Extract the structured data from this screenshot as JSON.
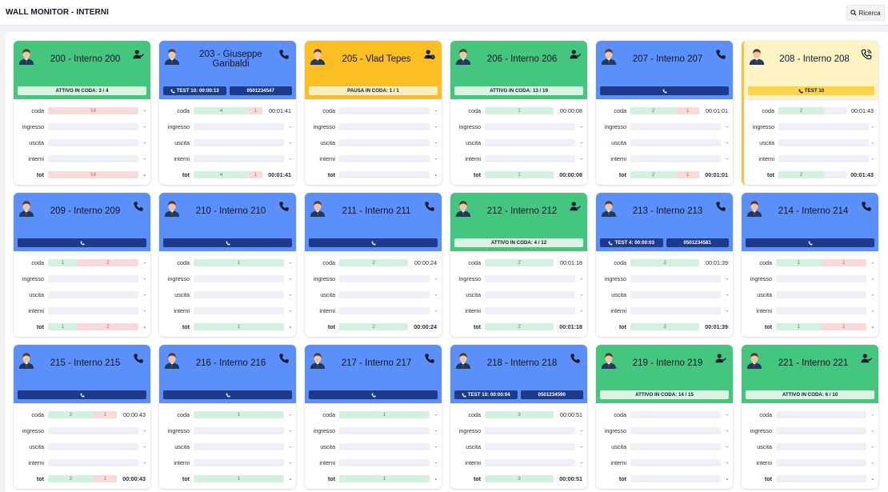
{
  "app": {
    "title": "WALL MONITOR - INTERNI",
    "search_label": "Ricerca",
    "search_icon": "search-icon"
  },
  "colors": {
    "green": "#45c67e",
    "blue": "#5b8ff9",
    "yellow": "#fbbf24",
    "cream": "#fdf3c4",
    "navy": "#1e3a8a"
  },
  "row_labels": {
    "coda": "coda",
    "ingresso": "ingresso",
    "uscita": "uscita",
    "interni": "interni",
    "tot": "tot"
  },
  "extensions": [
    {
      "name": "200 - Interno 200",
      "color": "green",
      "status_icon": "user-check-icon",
      "pills": [
        {
          "style": "light-green",
          "text": "ATTIVO IN CODA: 3 / 4"
        }
      ],
      "stats": {
        "coda": {
          "segs": [
            {
              "type": "r",
              "text": "14",
              "frac": 1.0
            }
          ],
          "value": "-"
        },
        "ingresso": {
          "segs": [],
          "value": "-"
        },
        "uscita": {
          "segs": [],
          "value": "-"
        },
        "interni": {
          "segs": [],
          "value": "-"
        },
        "tot": {
          "segs": [
            {
              "type": "r",
              "text": "14",
              "frac": 1.0
            }
          ],
          "value": "-"
        }
      }
    },
    {
      "name": "203 - Giuseppe Garibaldi",
      "color": "blue",
      "status_icon": "phone-icon",
      "pills": [
        {
          "style": "navy",
          "text": "TEST 10: 00:00:13",
          "icon": "phone-icon"
        },
        {
          "style": "navy",
          "text": "0501234547"
        }
      ],
      "stats": {
        "coda": {
          "segs": [
            {
              "type": "g",
              "text": "4",
              "frac": 0.8
            },
            {
              "type": "r",
              "text": "1",
              "frac": 0.2
            }
          ],
          "value": "00:01:41"
        },
        "ingresso": {
          "segs": [],
          "value": "-"
        },
        "uscita": {
          "segs": [],
          "value": "-"
        },
        "interni": {
          "segs": [],
          "value": "-"
        },
        "tot": {
          "segs": [
            {
              "type": "g",
              "text": "4",
              "frac": 0.8
            },
            {
              "type": "r",
              "text": "1",
              "frac": 0.2
            }
          ],
          "value": "00:01:41"
        }
      }
    },
    {
      "name": "205 - Vlad Tepes",
      "color": "yellow",
      "status_icon": "user-clock-icon",
      "pills": [
        {
          "style": "light-yellow",
          "text": "PAUSA IN CODA: 1 / 1"
        }
      ],
      "stats": {
        "coda": {
          "segs": [],
          "value": "-"
        },
        "ingresso": {
          "segs": [],
          "value": "-"
        },
        "uscita": {
          "segs": [],
          "value": "-"
        },
        "interni": {
          "segs": [],
          "value": "-"
        },
        "tot": {
          "segs": [],
          "value": "-"
        }
      }
    },
    {
      "name": "206 - Interno 206",
      "color": "green",
      "status_icon": "user-check-icon",
      "pills": [
        {
          "style": "light-green",
          "text": "ATTIVO IN CODA: 13 / 19"
        }
      ],
      "stats": {
        "coda": {
          "segs": [
            {
              "type": "g",
              "text": "1",
              "frac": 1.0
            }
          ],
          "value": "00:00:08"
        },
        "ingresso": {
          "segs": [],
          "value": "-"
        },
        "uscita": {
          "segs": [],
          "value": "-"
        },
        "interni": {
          "segs": [],
          "value": "-"
        },
        "tot": {
          "segs": [
            {
              "type": "g",
              "text": "1",
              "frac": 1.0
            }
          ],
          "value": "00:00:08"
        }
      }
    },
    {
      "name": "207 - Interno 207",
      "color": "blue",
      "status_icon": "phone-icon",
      "pills": [
        {
          "style": "navy",
          "text": "",
          "icon": "phone-icon"
        }
      ],
      "stats": {
        "coda": {
          "segs": [
            {
              "type": "g",
              "text": "2",
              "frac": 0.66
            },
            {
              "type": "r",
              "text": "1",
              "frac": 0.34
            }
          ],
          "value": "00:01:01"
        },
        "ingresso": {
          "segs": [],
          "value": "-"
        },
        "uscita": {
          "segs": [],
          "value": "-"
        },
        "interni": {
          "segs": [],
          "value": "-"
        },
        "tot": {
          "segs": [
            {
              "type": "g",
              "text": "2",
              "frac": 0.66
            },
            {
              "type": "r",
              "text": "1",
              "frac": 0.34
            }
          ],
          "value": "00:01:01"
        }
      }
    },
    {
      "name": "208 - Interno 208",
      "color": "cream",
      "status_icon": "phone-ringing-icon",
      "highlight": true,
      "pills": [
        {
          "style": "yellow-strong",
          "text": "TEST 10",
          "icon": "phone-icon"
        }
      ],
      "stats": {
        "coda": {
          "segs": [
            {
              "type": "g",
              "text": "2",
              "frac": 0.66
            }
          ],
          "value": "00:01:43"
        },
        "ingresso": {
          "segs": [],
          "value": "-"
        },
        "uscita": {
          "segs": [],
          "value": "-"
        },
        "interni": {
          "segs": [],
          "value": "-"
        },
        "tot": {
          "segs": [
            {
              "type": "g",
              "text": "2",
              "frac": 0.66
            }
          ],
          "value": "00:01:43"
        }
      }
    },
    {
      "name": "209 - Interno 209",
      "color": "blue",
      "status_icon": "phone-icon",
      "pills": [
        {
          "style": "navy",
          "text": "",
          "icon": "phone-icon"
        }
      ],
      "stats": {
        "coda": {
          "segs": [
            {
              "type": "g",
              "text": "1",
              "frac": 0.33
            },
            {
              "type": "r",
              "text": "2",
              "frac": 0.67
            }
          ],
          "value": "-"
        },
        "ingresso": {
          "segs": [],
          "value": "-"
        },
        "uscita": {
          "segs": [],
          "value": "-"
        },
        "interni": {
          "segs": [],
          "value": "-"
        },
        "tot": {
          "segs": [
            {
              "type": "g",
              "text": "1",
              "frac": 0.33
            },
            {
              "type": "r",
              "text": "2",
              "frac": 0.67
            }
          ],
          "value": "-"
        }
      }
    },
    {
      "name": "210 - Interno 210",
      "color": "blue",
      "status_icon": "phone-icon",
      "pills": [
        {
          "style": "navy",
          "text": "",
          "icon": "phone-icon"
        }
      ],
      "stats": {
        "coda": {
          "segs": [
            {
              "type": "g",
              "text": "1",
              "frac": 1.0
            }
          ],
          "value": "-"
        },
        "ingresso": {
          "segs": [],
          "value": "-"
        },
        "uscita": {
          "segs": [],
          "value": "-"
        },
        "interni": {
          "segs": [],
          "value": "-"
        },
        "tot": {
          "segs": [
            {
              "type": "g",
              "text": "1",
              "frac": 1.0
            }
          ],
          "value": "-"
        }
      }
    },
    {
      "name": "211 - Interno 211",
      "color": "blue",
      "status_icon": "phone-icon",
      "pills": [
        {
          "style": "navy",
          "text": "",
          "icon": "phone-icon"
        }
      ],
      "stats": {
        "coda": {
          "segs": [
            {
              "type": "g",
              "text": "2",
              "frac": 1.0
            }
          ],
          "value": "00:00:24"
        },
        "ingresso": {
          "segs": [],
          "value": "-"
        },
        "uscita": {
          "segs": [],
          "value": "-"
        },
        "interni": {
          "segs": [],
          "value": "-"
        },
        "tot": {
          "segs": [
            {
              "type": "g",
              "text": "2",
              "frac": 1.0
            }
          ],
          "value": "00:00:24"
        }
      }
    },
    {
      "name": "212 - Interno 212",
      "color": "green",
      "status_icon": "user-check-icon",
      "pills": [
        {
          "style": "light-green",
          "text": "ATTIVO IN CODA: 4 / 12"
        }
      ],
      "stats": {
        "coda": {
          "segs": [
            {
              "type": "g",
              "text": "2",
              "frac": 1.0
            }
          ],
          "value": "00:01:18"
        },
        "ingresso": {
          "segs": [],
          "value": "-"
        },
        "uscita": {
          "segs": [],
          "value": "-"
        },
        "interni": {
          "segs": [],
          "value": "-"
        },
        "tot": {
          "segs": [
            {
              "type": "g",
              "text": "2",
              "frac": 1.0
            }
          ],
          "value": "00:01:18"
        }
      }
    },
    {
      "name": "213 - Interno 213",
      "color": "blue",
      "status_icon": "phone-icon",
      "pills": [
        {
          "style": "navy",
          "text": "TEST 4: 00:00:03",
          "icon": "phone-icon"
        },
        {
          "style": "navy",
          "text": "0501234581"
        }
      ],
      "stats": {
        "coda": {
          "segs": [
            {
              "type": "g",
              "text": "3",
              "frac": 1.0
            }
          ],
          "value": "00:01:39"
        },
        "ingresso": {
          "segs": [],
          "value": "-"
        },
        "uscita": {
          "segs": [],
          "value": "-"
        },
        "interni": {
          "segs": [],
          "value": "-"
        },
        "tot": {
          "segs": [
            {
              "type": "g",
              "text": "3",
              "frac": 1.0
            }
          ],
          "value": "00:01:39"
        }
      }
    },
    {
      "name": "214 - Interno 214",
      "color": "blue",
      "status_icon": "phone-icon",
      "pills": [
        {
          "style": "navy",
          "text": "",
          "icon": "phone-icon"
        }
      ],
      "stats": {
        "coda": {
          "segs": [
            {
              "type": "g",
              "text": "1",
              "frac": 0.5
            },
            {
              "type": "r",
              "text": "1",
              "frac": 0.5
            }
          ],
          "value": "-"
        },
        "ingresso": {
          "segs": [],
          "value": "-"
        },
        "uscita": {
          "segs": [],
          "value": "-"
        },
        "interni": {
          "segs": [],
          "value": "-"
        },
        "tot": {
          "segs": [
            {
              "type": "g",
              "text": "1",
              "frac": 0.5
            },
            {
              "type": "r",
              "text": "1",
              "frac": 0.5
            }
          ],
          "value": "-"
        }
      }
    },
    {
      "name": "215 - Interno 215",
      "color": "blue",
      "status_icon": "phone-icon",
      "pills": [
        {
          "style": "navy",
          "text": "",
          "icon": "phone-icon"
        }
      ],
      "stats": {
        "coda": {
          "segs": [
            {
              "type": "g",
              "text": "2",
              "frac": 0.66
            },
            {
              "type": "r",
              "text": "1",
              "frac": 0.34
            }
          ],
          "value": "00:00:43"
        },
        "ingresso": {
          "segs": [],
          "value": "-"
        },
        "uscita": {
          "segs": [],
          "value": "-"
        },
        "interni": {
          "segs": [],
          "value": "-"
        },
        "tot": {
          "segs": [
            {
              "type": "g",
              "text": "2",
              "frac": 0.66
            },
            {
              "type": "r",
              "text": "1",
              "frac": 0.34
            }
          ],
          "value": "00:00:43"
        }
      }
    },
    {
      "name": "216 - Interno 216",
      "color": "blue",
      "status_icon": "phone-icon",
      "pills": [
        {
          "style": "navy",
          "text": "",
          "icon": "phone-icon"
        }
      ],
      "stats": {
        "coda": {
          "segs": [
            {
              "type": "g",
              "text": "1",
              "frac": 1.0
            }
          ],
          "value": "-"
        },
        "ingresso": {
          "segs": [],
          "value": "-"
        },
        "uscita": {
          "segs": [],
          "value": "-"
        },
        "interni": {
          "segs": [],
          "value": "-"
        },
        "tot": {
          "segs": [
            {
              "type": "g",
              "text": "1",
              "frac": 1.0
            }
          ],
          "value": "-"
        }
      }
    },
    {
      "name": "217 - Interno 217",
      "color": "blue",
      "status_icon": "phone-icon",
      "pills": [
        {
          "style": "navy",
          "text": "",
          "icon": "phone-icon"
        }
      ],
      "stats": {
        "coda": {
          "segs": [
            {
              "type": "g",
              "text": "1",
              "frac": 1.0
            }
          ],
          "value": "-"
        },
        "ingresso": {
          "segs": [],
          "value": "-"
        },
        "uscita": {
          "segs": [],
          "value": "-"
        },
        "interni": {
          "segs": [],
          "value": "-"
        },
        "tot": {
          "segs": [
            {
              "type": "g",
              "text": "1",
              "frac": 1.0
            }
          ],
          "value": "-"
        }
      }
    },
    {
      "name": "218 - Interno 218",
      "color": "blue",
      "status_icon": "phone-icon",
      "pills": [
        {
          "style": "navy",
          "text": "TEST 10: 00:00:04",
          "icon": "phone-icon"
        },
        {
          "style": "navy",
          "text": "0501234590"
        }
      ],
      "stats": {
        "coda": {
          "segs": [
            {
              "type": "g",
              "text": "3",
              "frac": 1.0
            }
          ],
          "value": "00:00:51"
        },
        "ingresso": {
          "segs": [],
          "value": "-"
        },
        "uscita": {
          "segs": [],
          "value": "-"
        },
        "interni": {
          "segs": [],
          "value": "-"
        },
        "tot": {
          "segs": [
            {
              "type": "g",
              "text": "3",
              "frac": 1.0
            }
          ],
          "value": "00:00:51"
        }
      }
    },
    {
      "name": "219 - Interno 219",
      "color": "green",
      "status_icon": "user-check-icon",
      "pills": [
        {
          "style": "light-green",
          "text": "ATTIVO IN CODA: 14 / 15"
        }
      ],
      "stats": {
        "coda": {
          "segs": [],
          "value": "-"
        },
        "ingresso": {
          "segs": [],
          "value": "-"
        },
        "uscita": {
          "segs": [],
          "value": "-"
        },
        "interni": {
          "segs": [],
          "value": "-"
        },
        "tot": {
          "segs": [],
          "value": "-"
        }
      }
    },
    {
      "name": "221 - Interno 221",
      "color": "green",
      "status_icon": "user-check-icon",
      "pills": [
        {
          "style": "light-green",
          "text": "ATTIVO IN CODA: 6 / 10"
        }
      ],
      "stats": {
        "coda": {
          "segs": [],
          "value": "-"
        },
        "ingresso": {
          "segs": [],
          "value": "-"
        },
        "uscita": {
          "segs": [],
          "value": "-"
        },
        "interni": {
          "segs": [],
          "value": "-"
        },
        "tot": {
          "segs": [],
          "value": "-"
        }
      }
    }
  ]
}
